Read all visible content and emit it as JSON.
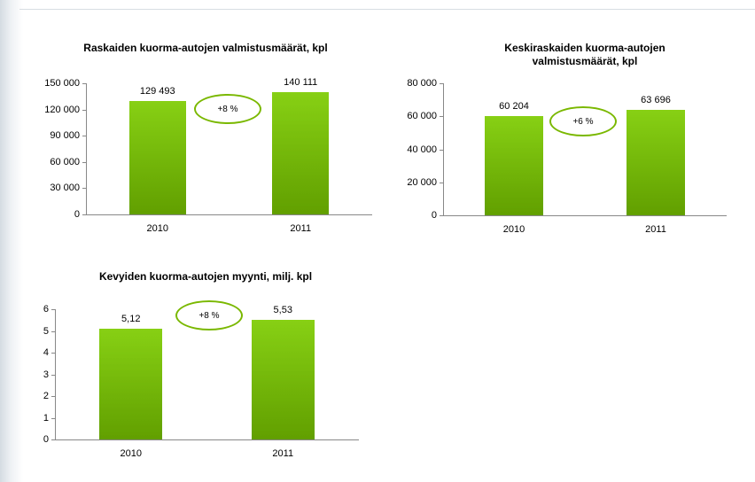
{
  "chart_data": [
    {
      "type": "bar",
      "title": "Raskaiden kuorma-autojen valmistusmäärät, kpl",
      "categories": [
        "2010",
        "2011"
      ],
      "values": [
        129493,
        140111
      ],
      "value_labels": [
        "129 493",
        "140 111"
      ],
      "color": "#7dcc00",
      "ylim": [
        0,
        150000
      ],
      "yticks": [
        0,
        {
          "value": 30000,
          "label": "30 000"
        },
        {
          "value": 60000,
          "label": "60 000"
        },
        {
          "value": 90000,
          "label": "90 000"
        },
        {
          "value": 120000,
          "label": "120 000"
        },
        {
          "value": 150000,
          "label": "150 000"
        }
      ],
      "annotation": "+8 %"
    },
    {
      "type": "bar",
      "title": "Keskiraskaiden kuorma-autojen valmistusmäärät, kpl",
      "categories": [
        "2010",
        "2011"
      ],
      "values": [
        60204,
        63696
      ],
      "value_labels": [
        "60 204",
        "63 696"
      ],
      "color": "#7dcc00",
      "ylim": [
        0,
        80000
      ],
      "yticks": [
        0,
        {
          "value": 20000,
          "label": "20 000"
        },
        {
          "value": 40000,
          "label": "40 000"
        },
        {
          "value": 60000,
          "label": "60 000"
        },
        {
          "value": 80000,
          "label": "80 000"
        }
      ],
      "annotation": "+6 %"
    },
    {
      "type": "bar",
      "title": "Kevyiden kuorma-autojen myynti, milj. kpl",
      "categories": [
        "2010",
        "2011"
      ],
      "values": [
        5.12,
        5.53
      ],
      "value_labels": [
        "5,12",
        "5,53"
      ],
      "color": "#7dcc00",
      "ylim": [
        0,
        6
      ],
      "yticks": [
        0,
        1,
        2,
        3,
        4,
        5,
        6
      ],
      "annotation": "+8 %"
    }
  ]
}
